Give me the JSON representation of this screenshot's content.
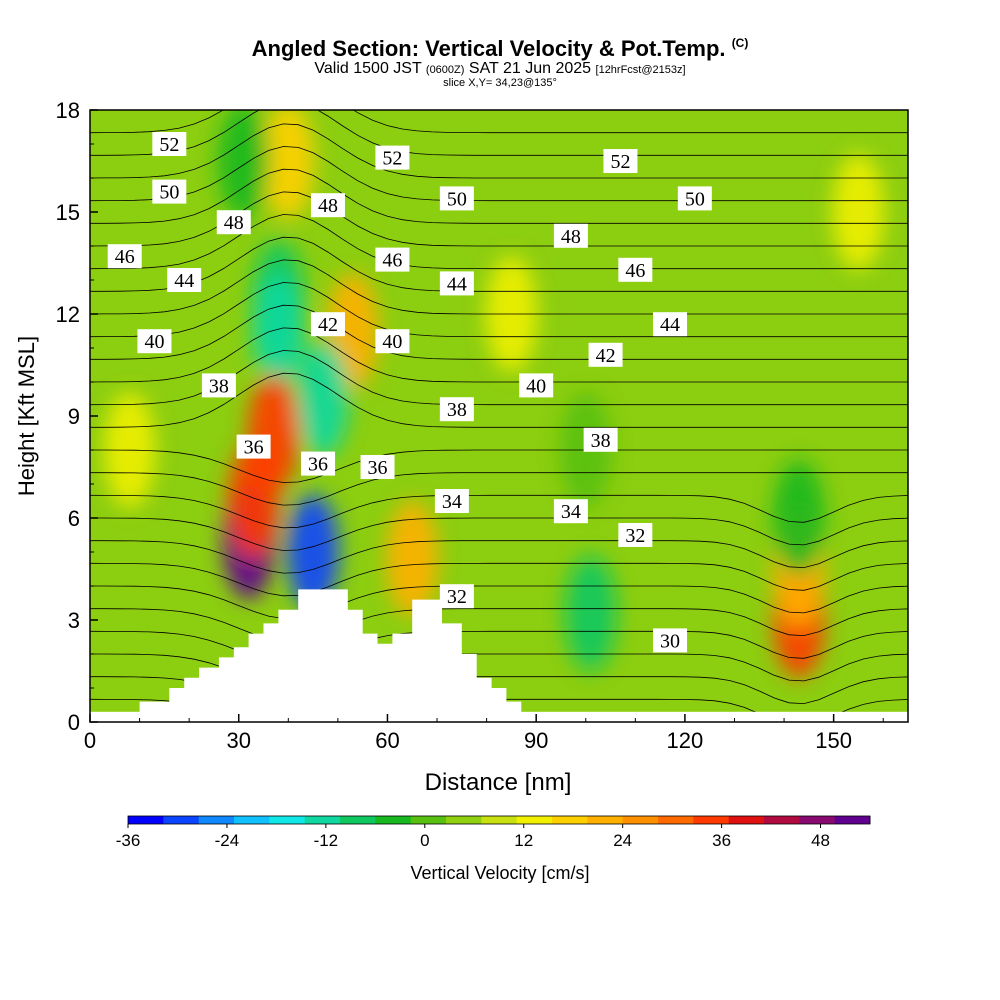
{
  "title": {
    "main": "Angled Section: Vertical Velocity & Pot.Temp.",
    "units_tag": "(C)",
    "valid_prefix": "Valid 1500 JST",
    "utc": "(0600Z)",
    "date": "SAT 21 Jun 2025",
    "forecast": "[12hrFcst@2153z]",
    "slice": "slice X,Y= 34,23@135°"
  },
  "chart_data": {
    "type": "heatmap",
    "xlabel": "Distance [nm]",
    "ylabel": "Height [Kft MSL]",
    "xlim": [
      0,
      165
    ],
    "ylim": [
      0,
      18
    ],
    "x_ticks": [
      0,
      30,
      60,
      90,
      120,
      150
    ],
    "y_ticks": [
      0,
      3,
      6,
      9,
      12,
      15,
      18
    ],
    "colorbar": {
      "label": "Vertical Velocity [cm/s]",
      "min": -36,
      "max": 54,
      "step": 4,
      "tick_values": [
        -36,
        -24,
        -12,
        0,
        12,
        24,
        36,
        48
      ],
      "tick_labels": [
        "-36",
        "-24",
        "-12",
        "0",
        "12",
        "24",
        "36",
        "48"
      ],
      "colors": [
        "#0000ff",
        "#0a44ff",
        "#0f88ff",
        "#10c0ff",
        "#10e8e8",
        "#10d8a0",
        "#10c860",
        "#18b820",
        "#58c010",
        "#90d010",
        "#c8e010",
        "#f0f000",
        "#ffd000",
        "#ffb000",
        "#ff9000",
        "#ff6a00",
        "#ff3a00",
        "#e01010",
        "#b00a40",
        "#880a70",
        "#600090"
      ]
    },
    "vertical_velocity_cells": [
      {
        "x": 40,
        "y": 16.5,
        "value": 14
      },
      {
        "x": 31,
        "y": 16.5,
        "value": -6
      },
      {
        "x": 38,
        "y": 12.5,
        "value": -12
      },
      {
        "x": 38,
        "y": 11.5,
        "value": -14
      },
      {
        "x": 53,
        "y": 11.5,
        "value": 16
      },
      {
        "x": 37,
        "y": 8.5,
        "value": 28
      },
      {
        "x": 32,
        "y": 5.3,
        "value": 44
      },
      {
        "x": 33,
        "y": 6.5,
        "value": 30
      },
      {
        "x": 45,
        "y": 5,
        "value": -32
      },
      {
        "x": 47,
        "y": 9.5,
        "value": -16
      },
      {
        "x": 65,
        "y": 4.8,
        "value": 18
      },
      {
        "x": 101,
        "y": 3.2,
        "value": -10
      },
      {
        "x": 143,
        "y": 3,
        "value": 28
      },
      {
        "x": 143,
        "y": 4.5,
        "value": 16
      },
      {
        "x": 143,
        "y": 6,
        "value": -8
      },
      {
        "x": 8,
        "y": 8,
        "value": 10
      },
      {
        "x": 85,
        "y": 12,
        "value": 8
      },
      {
        "x": 155,
        "y": 15,
        "value": 8
      },
      {
        "x": 100,
        "y": 8,
        "value": -4
      }
    ],
    "theta_contours": [
      {
        "label": "30",
        "x": 117,
        "y": 2.4
      },
      {
        "label": "32",
        "x": 74,
        "y": 3.7
      },
      {
        "label": "32",
        "x": 110,
        "y": 5.5
      },
      {
        "label": "34",
        "x": 73,
        "y": 6.5
      },
      {
        "label": "34",
        "x": 97,
        "y": 6.2
      },
      {
        "label": "36",
        "x": 33,
        "y": 8.1
      },
      {
        "label": "36",
        "x": 46,
        "y": 7.6
      },
      {
        "label": "36",
        "x": 58,
        "y": 7.5
      },
      {
        "label": "38",
        "x": 26,
        "y": 9.9
      },
      {
        "label": "38",
        "x": 74,
        "y": 9.2
      },
      {
        "label": "38",
        "x": 103,
        "y": 8.3
      },
      {
        "label": "40",
        "x": 13,
        "y": 11.2
      },
      {
        "label": "40",
        "x": 61,
        "y": 11.2
      },
      {
        "label": "40",
        "x": 90,
        "y": 9.9
      },
      {
        "label": "42",
        "x": 48,
        "y": 11.7
      },
      {
        "label": "42",
        "x": 104,
        "y": 10.8
      },
      {
        "label": "44",
        "x": 19,
        "y": 13
      },
      {
        "label": "44",
        "x": 74,
        "y": 12.9
      },
      {
        "label": "44",
        "x": 117,
        "y": 11.7
      },
      {
        "label": "46",
        "x": 7,
        "y": 13.7
      },
      {
        "label": "46",
        "x": 61,
        "y": 13.6
      },
      {
        "label": "46",
        "x": 110,
        "y": 13.3
      },
      {
        "label": "48",
        "x": 29,
        "y": 14.7
      },
      {
        "label": "48",
        "x": 48,
        "y": 15.2
      },
      {
        "label": "48",
        "x": 97,
        "y": 14.3
      },
      {
        "label": "50",
        "x": 16,
        "y": 15.6
      },
      {
        "label": "50",
        "x": 74,
        "y": 15.4
      },
      {
        "label": "50",
        "x": 122,
        "y": 15.4
      },
      {
        "label": "52",
        "x": 16,
        "y": 17
      },
      {
        "label": "52",
        "x": 61,
        "y": 16.6
      },
      {
        "label": "52",
        "x": 107,
        "y": 16.5
      }
    ],
    "terrain": [
      [
        10,
        0.3
      ],
      [
        10,
        0.6
      ],
      [
        16,
        0.6
      ],
      [
        16,
        1.0
      ],
      [
        19,
        1.0
      ],
      [
        19,
        1.3
      ],
      [
        22,
        1.3
      ],
      [
        22,
        1.6
      ],
      [
        26,
        1.6
      ],
      [
        26,
        1.9
      ],
      [
        29,
        1.9
      ],
      [
        29,
        2.2
      ],
      [
        32,
        2.2
      ],
      [
        32,
        2.6
      ],
      [
        35,
        2.6
      ],
      [
        35,
        2.9
      ],
      [
        38,
        2.9
      ],
      [
        38,
        3.3
      ],
      [
        42,
        3.3
      ],
      [
        42,
        3.9
      ],
      [
        52,
        3.9
      ],
      [
        52,
        3.3
      ],
      [
        55,
        3.3
      ],
      [
        55,
        2.6
      ],
      [
        58,
        2.6
      ],
      [
        58,
        2.3
      ],
      [
        61,
        2.3
      ],
      [
        61,
        2.6
      ],
      [
        65,
        2.6
      ],
      [
        65,
        3.6
      ],
      [
        71,
        3.6
      ],
      [
        71,
        2.9
      ],
      [
        75,
        2.9
      ],
      [
        75,
        2.0
      ],
      [
        78,
        2.0
      ],
      [
        78,
        1.3
      ],
      [
        81,
        1.3
      ],
      [
        81,
        1.0
      ],
      [
        84,
        1.0
      ],
      [
        84,
        0.6
      ],
      [
        87,
        0.6
      ],
      [
        87,
        0.3
      ]
    ]
  }
}
